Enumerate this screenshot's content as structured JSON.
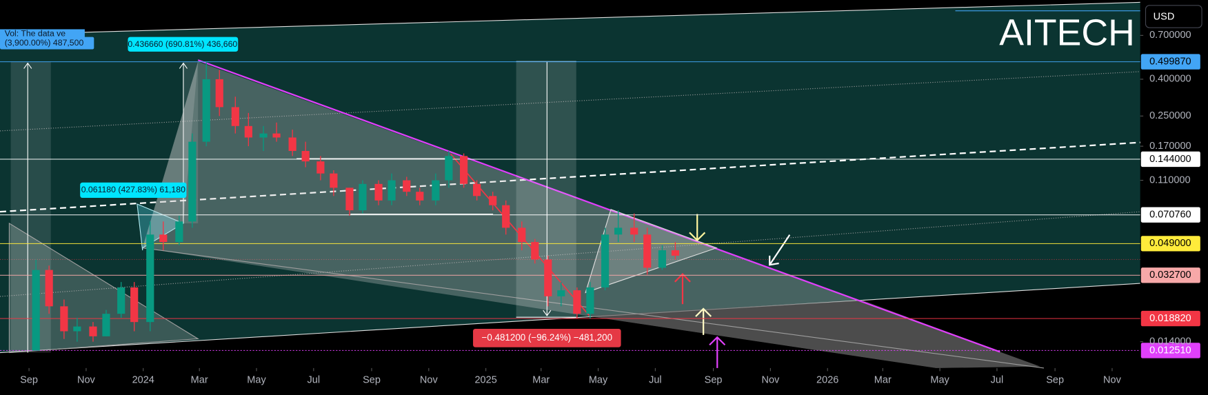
{
  "chart_data": {
    "type": "candlestick",
    "title": "AITECH",
    "currency": "USD",
    "log_scale": true,
    "colors": {
      "up": "#089981",
      "down": "#f23645"
    },
    "xlim": [
      "2023-08",
      "2026-12"
    ],
    "xticks": [
      {
        "value": "2023-09",
        "label": "Sep"
      },
      {
        "value": "2023-11",
        "label": "Nov"
      },
      {
        "value": "2024-01",
        "label": "2024"
      },
      {
        "value": "2024-03",
        "label": "Mar"
      },
      {
        "value": "2024-05",
        "label": "May"
      },
      {
        "value": "2024-07",
        "label": "Jul"
      },
      {
        "value": "2024-09",
        "label": "Sep"
      },
      {
        "value": "2024-11",
        "label": "Nov"
      },
      {
        "value": "2025-01",
        "label": "2025"
      },
      {
        "value": "2025-03",
        "label": "Mar"
      },
      {
        "value": "2025-05",
        "label": "May"
      },
      {
        "value": "2025-07",
        "label": "Jul"
      },
      {
        "value": "2025-09",
        "label": "Sep"
      },
      {
        "value": "2025-11",
        "label": "Nov"
      },
      {
        "value": "2026-01",
        "label": "2026"
      },
      {
        "value": "2026-03",
        "label": "Mar"
      },
      {
        "value": "2026-05",
        "label": "May"
      },
      {
        "value": "2026-07",
        "label": "Jul"
      },
      {
        "value": "2026-09",
        "label": "Sep"
      },
      {
        "value": "2026-11",
        "label": "Nov"
      }
    ],
    "ylim": [
      0.01,
      1.1
    ],
    "yticks": [
      {
        "value": 0.7,
        "label": "0.700000"
      },
      {
        "value": 0.4,
        "label": "0.400000"
      },
      {
        "value": 0.25,
        "label": "0.250000"
      },
      {
        "value": 0.17,
        "label": "0.170000"
      },
      {
        "value": 0.11,
        "label": "0.110000"
      },
      {
        "value": 0.014,
        "label": "0.014000"
      }
    ],
    "levels": [
      {
        "value": 0.49987,
        "label": "0.499870",
        "color": "#42a5f5",
        "text_color": "#000000"
      },
      {
        "value": 0.144,
        "label": "0.144000",
        "color": "#ffffff",
        "text_color": "#000000"
      },
      {
        "value": 0.07076,
        "label": "0.070760",
        "color": "#ffffff",
        "text_color": "#000000"
      },
      {
        "value": 0.049,
        "label": "0.049000",
        "color": "#ffeb3b",
        "text_color": "#000000"
      },
      {
        "value": 0.0327,
        "label": "0.032700",
        "color": "#f7a8a8",
        "text_color": "#000000"
      },
      {
        "value": 0.01882,
        "label": "0.018820",
        "color": "#f23645",
        "text_color": "#ffffff"
      },
      {
        "value": 0.01251,
        "label": "0.012510",
        "color": "#e040fb",
        "text_color": "#ffffff"
      }
    ],
    "annotations": [
      "Vol: The data ve",
      "(3,900.00%) 487,500",
      "0.436660 (690.81%) 436,660",
      "0.061180 (427.83%) 61,180",
      "−0.481200 (−96.24%) −481,200"
    ],
    "x": [
      "2023-09-01",
      "2023-09-15",
      "2023-10-01",
      "2023-10-15",
      "2023-11-01",
      "2023-11-15",
      "2023-12-01",
      "2023-12-15",
      "2024-01-01",
      "2024-01-15",
      "2024-02-01",
      "2024-02-15",
      "2024-03-01",
      "2024-03-15",
      "2024-04-01",
      "2024-04-15",
      "2024-05-01",
      "2024-05-15",
      "2024-06-01",
      "2024-06-15",
      "2024-07-01",
      "2024-07-15",
      "2024-08-01",
      "2024-08-15",
      "2024-09-01",
      "2024-09-15",
      "2024-10-01",
      "2024-10-15",
      "2024-11-01",
      "2024-11-15",
      "2024-12-01",
      "2024-12-15",
      "2025-01-01",
      "2025-01-15",
      "2025-02-01",
      "2025-02-15",
      "2025-03-01",
      "2025-03-15",
      "2025-04-01",
      "2025-04-15",
      "2025-05-01",
      "2025-05-15",
      "2025-06-01",
      "2025-06-15",
      "2025-07-01",
      "2025-07-15"
    ],
    "open": [
      0.0125,
      0.035,
      0.022,
      0.016,
      0.017,
      0.015,
      0.02,
      0.028,
      0.018,
      0.055,
      0.05,
      0.065,
      0.18,
      0.4,
      0.28,
      0.22,
      0.19,
      0.2,
      0.19,
      0.16,
      0.14,
      0.12,
      0.1,
      0.075,
      0.105,
      0.085,
      0.11,
      0.095,
      0.085,
      0.11,
      0.15,
      0.105,
      0.09,
      0.08,
      0.06,
      0.05,
      0.04,
      0.025,
      0.027,
      0.02,
      0.028,
      0.055,
      0.06,
      0.055,
      0.036,
      0.045
    ],
    "high": [
      0.04,
      0.037,
      0.024,
      0.019,
      0.018,
      0.021,
      0.03,
      0.03,
      0.065,
      0.065,
      0.07,
      0.2,
      0.5,
      0.45,
      0.32,
      0.26,
      0.22,
      0.23,
      0.21,
      0.18,
      0.15,
      0.125,
      0.1,
      0.11,
      0.11,
      0.12,
      0.115,
      0.1,
      0.12,
      0.16,
      0.155,
      0.11,
      0.095,
      0.085,
      0.065,
      0.052,
      0.042,
      0.03,
      0.028,
      0.03,
      0.06,
      0.075,
      0.072,
      0.06,
      0.048,
      0.05
    ],
    "low": [
      0.0125,
      0.02,
      0.0145,
      0.014,
      0.014,
      0.015,
      0.019,
      0.016,
      0.016,
      0.045,
      0.048,
      0.06,
      0.17,
      0.25,
      0.2,
      0.17,
      0.16,
      0.18,
      0.15,
      0.13,
      0.11,
      0.09,
      0.07,
      0.072,
      0.08,
      0.08,
      0.09,
      0.08,
      0.08,
      0.1,
      0.1,
      0.085,
      0.075,
      0.055,
      0.045,
      0.038,
      0.022,
      0.022,
      0.0188,
      0.0188,
      0.027,
      0.05,
      0.05,
      0.033,
      0.035,
      0.04
    ],
    "close": [
      0.035,
      0.022,
      0.016,
      0.017,
      0.015,
      0.02,
      0.028,
      0.018,
      0.055,
      0.05,
      0.065,
      0.18,
      0.4,
      0.28,
      0.22,
      0.19,
      0.2,
      0.19,
      0.16,
      0.14,
      0.12,
      0.1,
      0.075,
      0.105,
      0.085,
      0.11,
      0.095,
      0.085,
      0.11,
      0.15,
      0.105,
      0.09,
      0.08,
      0.06,
      0.05,
      0.04,
      0.025,
      0.027,
      0.02,
      0.028,
      0.055,
      0.06,
      0.055,
      0.036,
      0.045,
      0.042
    ]
  }
}
